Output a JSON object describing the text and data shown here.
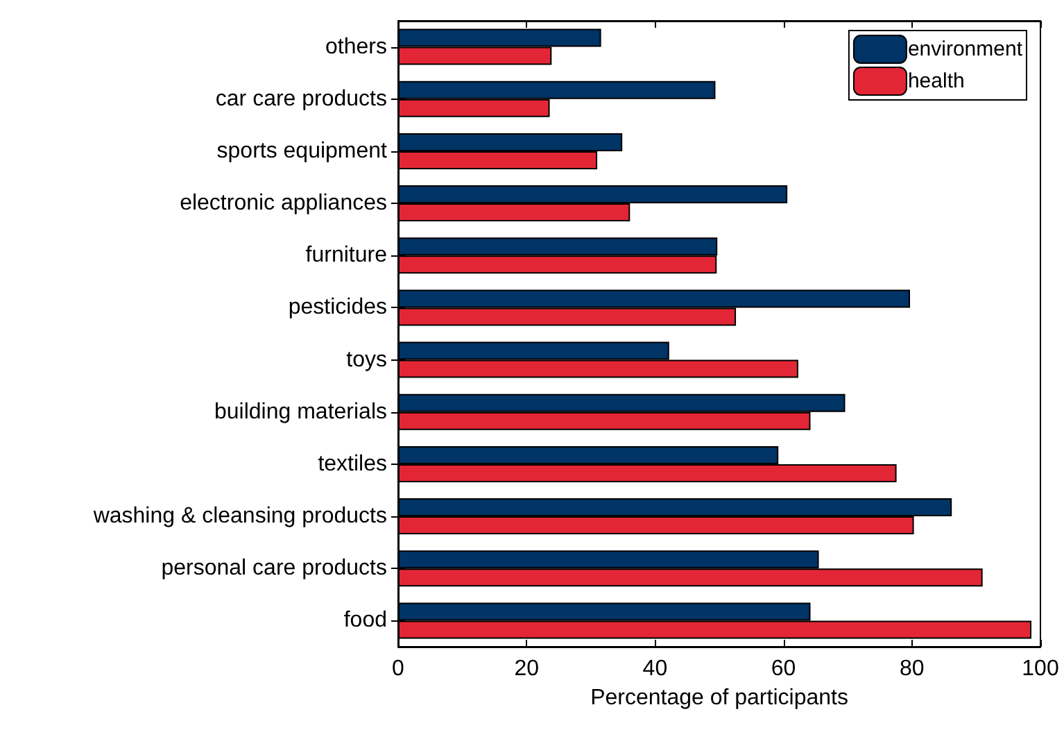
{
  "chart_data": {
    "type": "bar",
    "orientation": "horizontal",
    "xlabel": "Percentage of participants",
    "categories": [
      "others",
      "car care products",
      "sports equipment",
      "electronic appliances",
      "furniture",
      "pesticides",
      "toys",
      "building materials",
      "textiles",
      "washing & cleansing products",
      "personal care products",
      "food"
    ],
    "series": [
      {
        "name": "environment",
        "color": "#003366",
        "values": [
          31.6,
          49.4,
          34.9,
          60.6,
          49.7,
          79.7,
          42.2,
          69.6,
          59.2,
          86.2,
          65.5,
          64.2
        ]
      },
      {
        "name": "health",
        "color": "#e32636",
        "values": [
          23.9,
          23.6,
          31.0,
          36.1,
          49.6,
          52.6,
          62.3,
          64.2,
          77.6,
          80.3,
          91.0,
          98.6
        ]
      }
    ],
    "xlim": [
      0,
      100
    ],
    "xticks": [
      0,
      20,
      40,
      60,
      80,
      100
    ],
    "grid": false,
    "legend": "top right"
  }
}
